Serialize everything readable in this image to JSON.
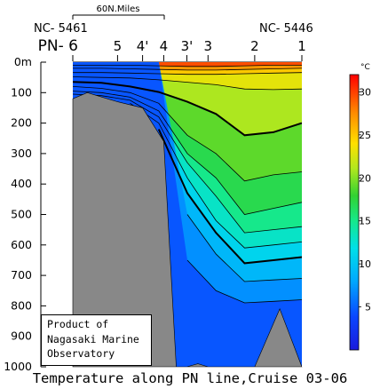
{
  "chart_data": {
    "type": "heatmap",
    "title": "Temperature along PN line,Cruise 03-06",
    "xlabel": "",
    "ylabel": "",
    "y_unit_label": "m",
    "ylim": [
      1000,
      0
    ],
    "y_ticks": [
      0,
      100,
      200,
      300,
      400,
      500,
      600,
      700,
      800,
      900,
      1000
    ],
    "y_tick_labels": [
      "0m",
      "100",
      "200",
      "300",
      "400",
      "500",
      "600",
      "700",
      "800",
      "900",
      "1000"
    ],
    "station_prefix": "PN- ",
    "stations": [
      {
        "label": "6",
        "km": 0
      },
      {
        "label": "5",
        "km": 93
      },
      {
        "label": "4'",
        "km": 145
      },
      {
        "label": "4",
        "km": 189
      },
      {
        "label": "3'",
        "km": 237
      },
      {
        "label": "3",
        "km": 281
      },
      {
        "label": "2",
        "km": 378
      },
      {
        "label": "1",
        "km": 476
      }
    ],
    "endpoint_left": "NC- 5461",
    "endpoint_right": "NC- 5446",
    "scale_bar_label": "60N.Miles",
    "scale_bar_km": 111,
    "colorbar": {
      "unit": "°C",
      "min": 0,
      "max": 32,
      "ticks": [
        5,
        10,
        15,
        20,
        25,
        30
      ]
    },
    "isotherms": [
      {
        "temp": 28,
        "depths": [
          10,
          10,
          10,
          12,
          14,
          14,
          12,
          10,
          10
        ]
      },
      {
        "temp": 26,
        "depths": [
          20,
          20,
          22,
          24,
          26,
          26,
          24,
          22,
          20
        ]
      },
      {
        "temp": 24,
        "depths": [
          34,
          34,
          36,
          38,
          40,
          40,
          38,
          36,
          34
        ]
      },
      {
        "temp": 22,
        "depths": [
          48,
          50,
          52,
          58,
          66,
          74,
          88,
          90,
          88
        ]
      },
      {
        "temp": 20,
        "depths": [
          65,
          68,
          80,
          98,
          130,
          170,
          240,
          230,
          200
        ]
      },
      {
        "temp": 18,
        "depths": [
          80,
          86,
          100,
          135,
          240,
          300,
          390,
          370,
          360
        ]
      },
      {
        "temp": 16,
        "depths": [
          95,
          100,
          115,
          160,
          300,
          380,
          500,
          480,
          460
        ]
      },
      {
        "temp": 14,
        "depths": [
          105,
          110,
          125,
          180,
          330,
          440,
          560,
          550,
          540
        ]
      },
      {
        "temp": 12,
        "depths": [
          null,
          null,
          135,
          200,
          380,
          520,
          610,
          600,
          590
        ]
      },
      {
        "temp": 10,
        "depths": [
          null,
          null,
          null,
          220,
          430,
          560,
          660,
          650,
          640
        ]
      },
      {
        "temp": 8,
        "depths": [
          null,
          null,
          null,
          null,
          500,
          630,
          720,
          715,
          710
        ]
      },
      {
        "temp": 6,
        "depths": [
          null,
          null,
          null,
          null,
          650,
          750,
          790,
          785,
          780
        ]
      }
    ],
    "bottom_profile_depths": [
      120,
      100,
      130,
      150,
      260,
      1000,
      1000,
      990,
      1000,
      1000,
      1000,
      810,
      1000
    ],
    "bottom_profile_km": [
      0,
      30,
      93,
      145,
      189,
      215,
      237,
      260,
      281,
      310,
      378,
      430,
      476
    ]
  },
  "credit": {
    "line1": "Product of",
    "line2": "Nagasaki Marine",
    "line3": "Observatory"
  }
}
